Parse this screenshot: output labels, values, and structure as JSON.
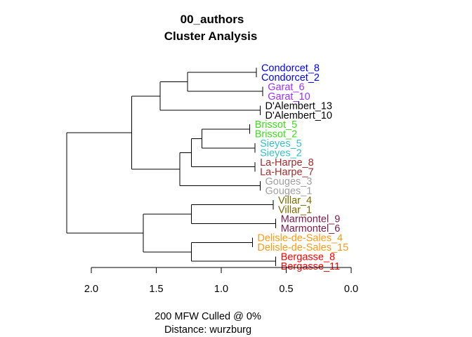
{
  "chart_data": {
    "type": "dendrogram",
    "title": "00_authors",
    "subtitle": "Cluster Analysis",
    "caption_line1": "200 MFW  Culled @ 0%",
    "caption_line2": "Distance: wurzburg",
    "axis": {
      "reversed": true,
      "range": [
        2.1,
        -0.05
      ],
      "ticks": [
        2.0,
        1.5,
        1.0,
        0.5,
        0.0
      ],
      "tick_labels": [
        "2.0",
        "1.5",
        "1.0",
        "0.5",
        "0.0"
      ]
    },
    "leaves": [
      {
        "label": "Condorcet_8",
        "color": "#0000ff"
      },
      {
        "label": "Condorcet_2",
        "color": "#0000ff"
      },
      {
        "label": "Garat_6",
        "color": "#9b30ff"
      },
      {
        "label": "Garat_10",
        "color": "#9b30ff"
      },
      {
        "label": "D'Alembert_13",
        "color": "#000000"
      },
      {
        "label": "D'Alembert_10",
        "color": "#000000"
      },
      {
        "label": "Brissot_5",
        "color": "#3ddc1c"
      },
      {
        "label": "Brissot_2",
        "color": "#3ddc1c"
      },
      {
        "label": "Sieyes_5",
        "color": "#35c0c8"
      },
      {
        "label": "Sieyes_2",
        "color": "#35c0c8"
      },
      {
        "label": "La-Harpe_8",
        "color": "#a52a2a"
      },
      {
        "label": "La-Harpe_7",
        "color": "#a52a2a"
      },
      {
        "label": "Gouges_3",
        "color": "#a0a0a0"
      },
      {
        "label": "Gouges_1",
        "color": "#a0a0a0"
      },
      {
        "label": "Villar_4",
        "color": "#7a6a00"
      },
      {
        "label": "Villar_1",
        "color": "#7a6a00"
      },
      {
        "label": "Marmontel_9",
        "color": "#7b1a4a"
      },
      {
        "label": "Marmontel_6",
        "color": "#7b1a4a"
      },
      {
        "label": "Delisle-de-Sales_4",
        "color": "#ff9a10"
      },
      {
        "label": "Delisle-de-Sales_15",
        "color": "#ff9a10"
      },
      {
        "label": "Bergasse_8",
        "color": "#ff0000"
      },
      {
        "label": "Bergasse_11",
        "color": "#ff0000"
      }
    ],
    "merges": [
      {
        "id": "a",
        "left": 0,
        "right": 1,
        "height": 0.73
      },
      {
        "id": "b",
        "left": 2,
        "right": 3,
        "height": 0.68
      },
      {
        "id": "c",
        "left": 4,
        "right": 5,
        "height": 0.7
      },
      {
        "id": "d",
        "left": "a",
        "right": "b",
        "height": 1.26
      },
      {
        "id": "e",
        "left": "d",
        "right": "c",
        "height": 1.47
      },
      {
        "id": "f",
        "left": 6,
        "right": 7,
        "height": 0.78
      },
      {
        "id": "g",
        "left": 8,
        "right": 9,
        "height": 0.74
      },
      {
        "id": "h",
        "left": "f",
        "right": "g",
        "height": 1.15
      },
      {
        "id": "i",
        "left": 10,
        "right": 11,
        "height": 0.74
      },
      {
        "id": "j",
        "left": "h",
        "right": "i",
        "height": 1.23
      },
      {
        "id": "k",
        "left": 12,
        "right": 13,
        "height": 0.7
      },
      {
        "id": "l",
        "left": "j",
        "right": "k",
        "height": 1.32
      },
      {
        "id": "m",
        "left": "e",
        "right": "l",
        "height": 1.69
      },
      {
        "id": "n",
        "left": 14,
        "right": 15,
        "height": 0.6
      },
      {
        "id": "o",
        "left": 16,
        "right": 17,
        "height": 0.58
      },
      {
        "id": "p",
        "left": "n",
        "right": "o",
        "height": 1.23
      },
      {
        "id": "q",
        "left": 18,
        "right": 19,
        "height": 0.76
      },
      {
        "id": "r",
        "left": 20,
        "right": 21,
        "height": 0.58
      },
      {
        "id": "s",
        "left": "q",
        "right": "r",
        "height": 1.23
      },
      {
        "id": "t",
        "left": "p",
        "right": "s",
        "height": 1.6
      },
      {
        "id": "u",
        "left": "m",
        "right": "t",
        "height": 2.19
      }
    ]
  }
}
